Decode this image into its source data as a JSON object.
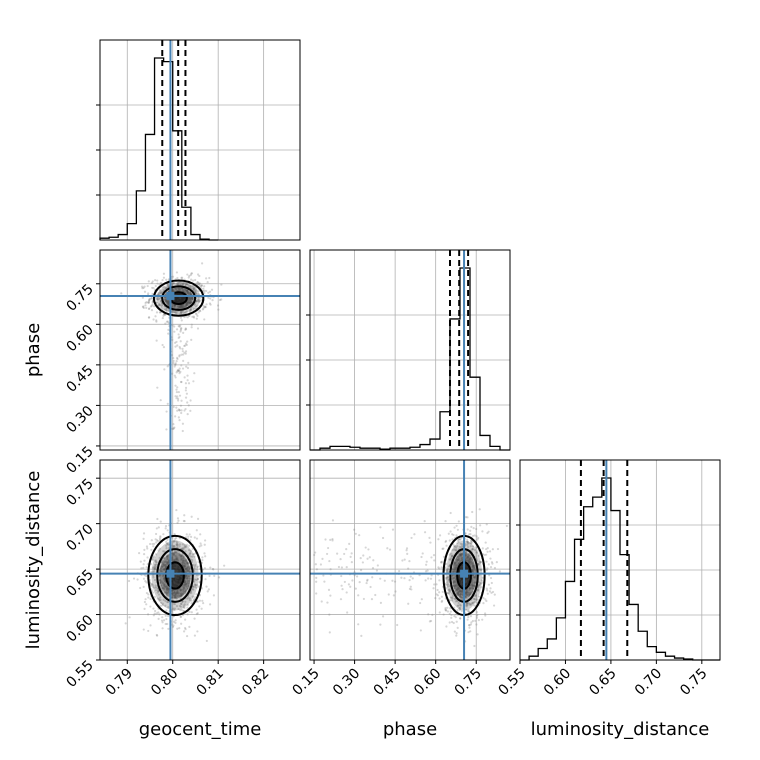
{
  "chart_data": {
    "type": "corner",
    "parameters": [
      "geocent_time",
      "phase",
      "luminosity_distance"
    ],
    "truths": {
      "geocent_time": 0.7995,
      "phase": 0.705,
      "luminosity_distance": 0.645
    },
    "colors": {
      "truth": "#4682b4",
      "hist": "#000000",
      "grid": "#b0b0b0",
      "points": "#8a8a8a"
    },
    "grid": true,
    "ranges": {
      "geocent_time": [
        0.784,
        0.828
      ],
      "phase": [
        0.135,
        0.875
      ],
      "luminosity_distance": [
        0.55,
        0.77
      ]
    },
    "ticks": {
      "geocent_time": [
        "0.79",
        "0.80",
        "0.81",
        "0.82"
      ],
      "phase": [
        "0.15",
        "0.30",
        "0.45",
        "0.60",
        "0.75"
      ],
      "luminosity_distance_x": [
        "0.55",
        "0.60",
        "0.65",
        "0.70",
        "0.75"
      ],
      "luminosity_distance_y": [
        "0.55",
        "0.60",
        "0.65",
        "0.70",
        "0.75"
      ]
    },
    "xlabels": [
      "geocent_time",
      "phase",
      "luminosity_distance"
    ],
    "ylabels": [
      "",
      "phase",
      "luminosity_distance"
    ],
    "histograms": {
      "geocent_time": {
        "edges": [
          0.784,
          0.786,
          0.788,
          0.79,
          0.792,
          0.794,
          0.796,
          0.798,
          0.8,
          0.802,
          0.804,
          0.806,
          0.808,
          0.81
        ],
        "counts": [
          0.01,
          0.015,
          0.03,
          0.09,
          0.27,
          0.58,
          1.0,
          0.98,
          0.6,
          0.18,
          0.03,
          0.005,
          0.0
        ],
        "quantiles": [
          0.7977,
          0.8012,
          0.8028
        ]
      },
      "phase": {
        "edges": [
          0.135,
          0.172,
          0.209,
          0.246,
          0.283,
          0.32,
          0.357,
          0.394,
          0.431,
          0.468,
          0.505,
          0.542,
          0.579,
          0.616,
          0.653,
          0.69,
          0.727,
          0.764,
          0.801,
          0.838,
          0.875
        ],
        "counts": [
          0.0,
          0.01,
          0.02,
          0.02,
          0.015,
          0.01,
          0.01,
          0.005,
          0.01,
          0.01,
          0.015,
          0.03,
          0.06,
          0.21,
          0.72,
          1.0,
          0.4,
          0.08,
          0.02,
          0.0
        ],
        "quantiles": [
          0.653,
          0.687,
          0.72
        ]
      },
      "luminosity_distance": {
        "edges": [
          0.55,
          0.56,
          0.57,
          0.58,
          0.59,
          0.6,
          0.61,
          0.62,
          0.63,
          0.64,
          0.65,
          0.66,
          0.67,
          0.68,
          0.69,
          0.7,
          0.71,
          0.72,
          0.73,
          0.74,
          0.75,
          0.76,
          0.77
        ],
        "counts": [
          0.0,
          0.02,
          0.06,
          0.11,
          0.22,
          0.41,
          0.63,
          0.8,
          0.85,
          0.95,
          0.78,
          0.55,
          0.29,
          0.15,
          0.07,
          0.04,
          0.02,
          0.01,
          0.005,
          0.0,
          0.0,
          0.0
        ],
        "quantiles": [
          0.617,
          0.642,
          0.668
        ]
      }
    },
    "scatter": [
      {
        "x": "geocent_time",
        "y": "phase",
        "center": [
          0.8013,
          0.697
        ],
        "sd": [
          0.0025,
          0.03
        ],
        "tail": {
          "y_range": [
            0.2,
            0.6
          ],
          "x_sd": 0.0015
        }
      },
      {
        "x": "geocent_time",
        "y": "luminosity_distance",
        "center": [
          0.8005,
          0.643
        ],
        "sd": [
          0.0027,
          0.02
        ]
      },
      {
        "x": "phase",
        "y": "luminosity_distance",
        "center": [
          0.705,
          0.643
        ],
        "sd": [
          0.035,
          0.02
        ],
        "tail": {
          "x_range": [
            0.15,
            0.6
          ],
          "y_sd": 0.025
        }
      }
    ],
    "contour_levels": [
      0.5,
      1.0,
      1.5
    ]
  }
}
